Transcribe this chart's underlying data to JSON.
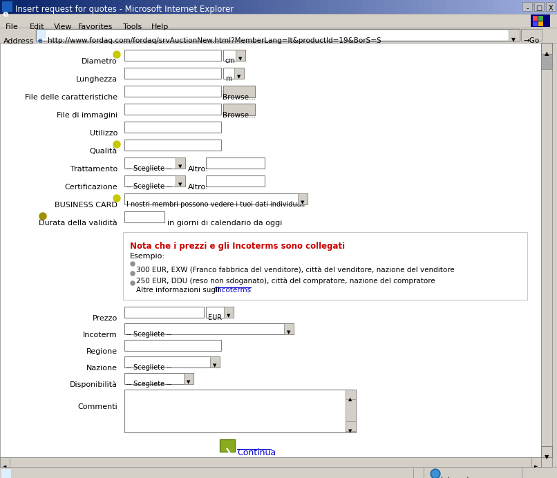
{
  "title_bar": "Insert request for quotes - Microsoft Internet Explorer",
  "menu_items": [
    "File",
    "Edit",
    "View",
    "Favorites",
    "Tools",
    "Help"
  ],
  "address_bar": "http://www.fordaq.com/fordaq/srvAuctionNew.html?MemberLang=It&productId=19&BorS=S",
  "bg_color": "#d4d0c8",
  "content_bg": "#ffffff",
  "continua_text": "Continua",
  "scrollbar_color": "#d4d0c8",
  "border_color": "#808080",
  "text_color": "#000000",
  "link_color": "#0000cc"
}
